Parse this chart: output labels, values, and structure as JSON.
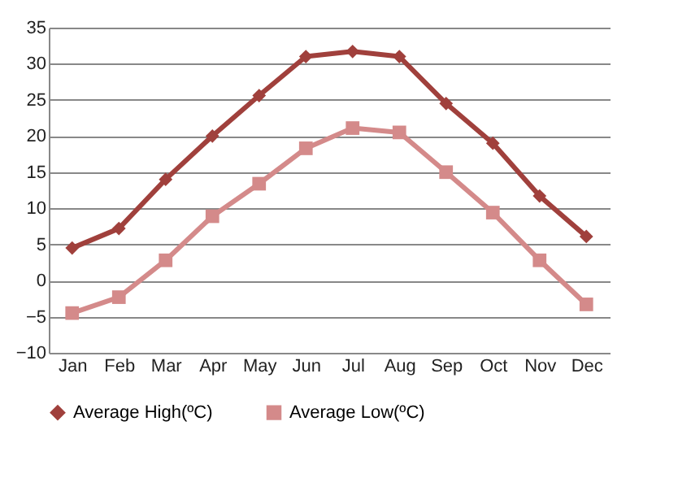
{
  "chart_data": {
    "type": "line",
    "categories": [
      "Jan",
      "Feb",
      "Mar",
      "Apr",
      "May",
      "Jun",
      "Jul",
      "Aug",
      "Sep",
      "Oct",
      "Nov",
      "Dec"
    ],
    "series": [
      {
        "name": "Average High(ºC)",
        "color": "#a0403c",
        "marker": "diamond",
        "values": [
          4.5,
          7.2,
          14,
          20,
          25.6,
          31,
          31.7,
          31,
          24.5,
          19,
          11.7,
          6.1
        ]
      },
      {
        "name": "Average Low(ºC)",
        "color": "#d48a8a",
        "marker": "square",
        "values": [
          -4.5,
          -2.3,
          2.8,
          8.9,
          13.4,
          18.3,
          21.1,
          20.5,
          15,
          9.4,
          2.8,
          -3.3
        ]
      }
    ],
    "ylim": [
      -10,
      35
    ],
    "yticks": [
      -10,
      -5,
      0,
      5,
      10,
      15,
      20,
      25,
      30,
      35
    ],
    "grid": "y",
    "legend": "bottom"
  }
}
